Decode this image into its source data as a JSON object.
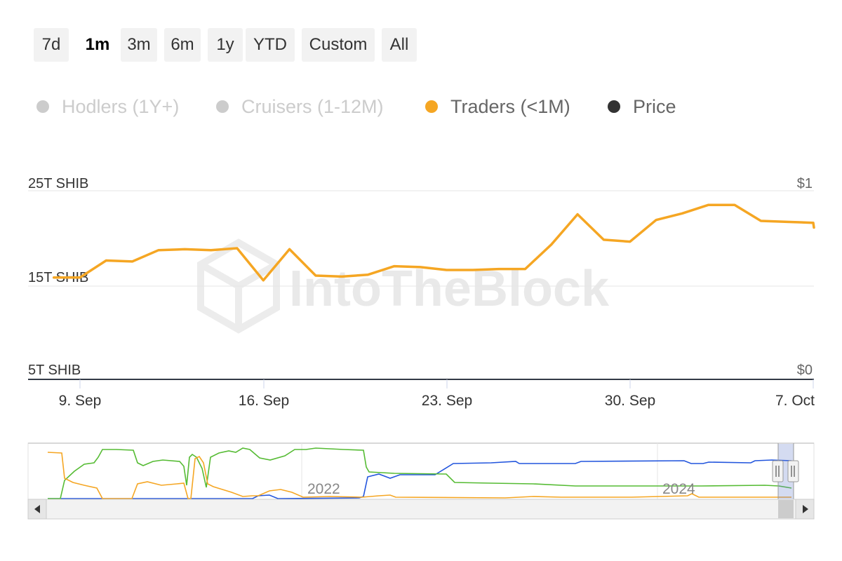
{
  "range_selector": {
    "buttons": [
      {
        "label": "7d",
        "active": false
      },
      {
        "label": "1m",
        "active": true
      },
      {
        "label": "3m",
        "active": false
      },
      {
        "label": "6m",
        "active": false
      },
      {
        "label": "1y",
        "active": false
      },
      {
        "label": "YTD",
        "active": false
      },
      {
        "label": "Custom",
        "active": false
      },
      {
        "label": "All",
        "active": false
      }
    ]
  },
  "legend": {
    "items": [
      {
        "label": "Hodlers (1Y+)",
        "color": "#cccccc",
        "text_color": "#cccccc",
        "enabled": false
      },
      {
        "label": "Cruisers (1-12M)",
        "color": "#cccccc",
        "text_color": "#cccccc",
        "enabled": false
      },
      {
        "label": "Traders (<1M)",
        "color": "#f5a623",
        "text_color": "#666666",
        "enabled": true
      },
      {
        "label": "Price",
        "color": "#333333",
        "text_color": "#666666",
        "enabled": true
      }
    ]
  },
  "watermark": {
    "text": "IntoTheBlock"
  },
  "chart_data": {
    "type": "line",
    "x_tick_labels": [
      "9. Sep",
      "16. Sep",
      "23. Sep",
      "30. Sep",
      "7. Oct"
    ],
    "x_range": [
      "2024-09-08",
      "2024-10-07"
    ],
    "y_left_ticks": [
      "5T SHIB",
      "15T SHIB",
      "25T SHIB"
    ],
    "y_left_range": [
      5,
      25
    ],
    "y_left_unit": "T SHIB",
    "y_right_ticks": [
      "$0",
      "$1"
    ],
    "y_right_range": [
      0,
      1
    ],
    "series": [
      {
        "name": "Traders (<1M)",
        "color": "#f5a623",
        "points": [
          {
            "x": "2024-09-08",
            "y": 15.8
          },
          {
            "x": "2024-09-09",
            "y": 15.8
          },
          {
            "x": "2024-09-10",
            "y": 17.6
          },
          {
            "x": "2024-09-11",
            "y": 17.5
          },
          {
            "x": "2024-09-12",
            "y": 18.7
          },
          {
            "x": "2024-09-13",
            "y": 18.8
          },
          {
            "x": "2024-09-14",
            "y": 18.7
          },
          {
            "x": "2024-09-15",
            "y": 18.9
          },
          {
            "x": "2024-09-16",
            "y": 15.5
          },
          {
            "x": "2024-09-17",
            "y": 18.8
          },
          {
            "x": "2024-09-18",
            "y": 16.0
          },
          {
            "x": "2024-09-19",
            "y": 15.9
          },
          {
            "x": "2024-09-20",
            "y": 16.1
          },
          {
            "x": "2024-09-21",
            "y": 17.0
          },
          {
            "x": "2024-09-22",
            "y": 16.9
          },
          {
            "x": "2024-09-23",
            "y": 16.6
          },
          {
            "x": "2024-09-24",
            "y": 16.6
          },
          {
            "x": "2024-09-25",
            "y": 16.7
          },
          {
            "x": "2024-09-26",
            "y": 16.7
          },
          {
            "x": "2024-09-27",
            "y": 19.3
          },
          {
            "x": "2024-09-28",
            "y": 22.5
          },
          {
            "x": "2024-09-29",
            "y": 19.8
          },
          {
            "x": "2024-09-30",
            "y": 19.6
          },
          {
            "x": "2024-10-01",
            "y": 21.9
          },
          {
            "x": "2024-10-02",
            "y": 22.6
          },
          {
            "x": "2024-10-03",
            "y": 23.5
          },
          {
            "x": "2024-10-04",
            "y": 23.5
          },
          {
            "x": "2024-10-05",
            "y": 21.8
          },
          {
            "x": "2024-10-06",
            "y": 21.7
          },
          {
            "x": "2024-10-07",
            "y": 21.6
          },
          {
            "x": "2024-10-08",
            "y": 21.1
          }
        ]
      }
    ],
    "grid": true,
    "navigator": {
      "year_labels": [
        "2022",
        "2024"
      ],
      "series_colors": [
        "#2255dd",
        "#55bb33",
        "#f5a623"
      ]
    }
  }
}
